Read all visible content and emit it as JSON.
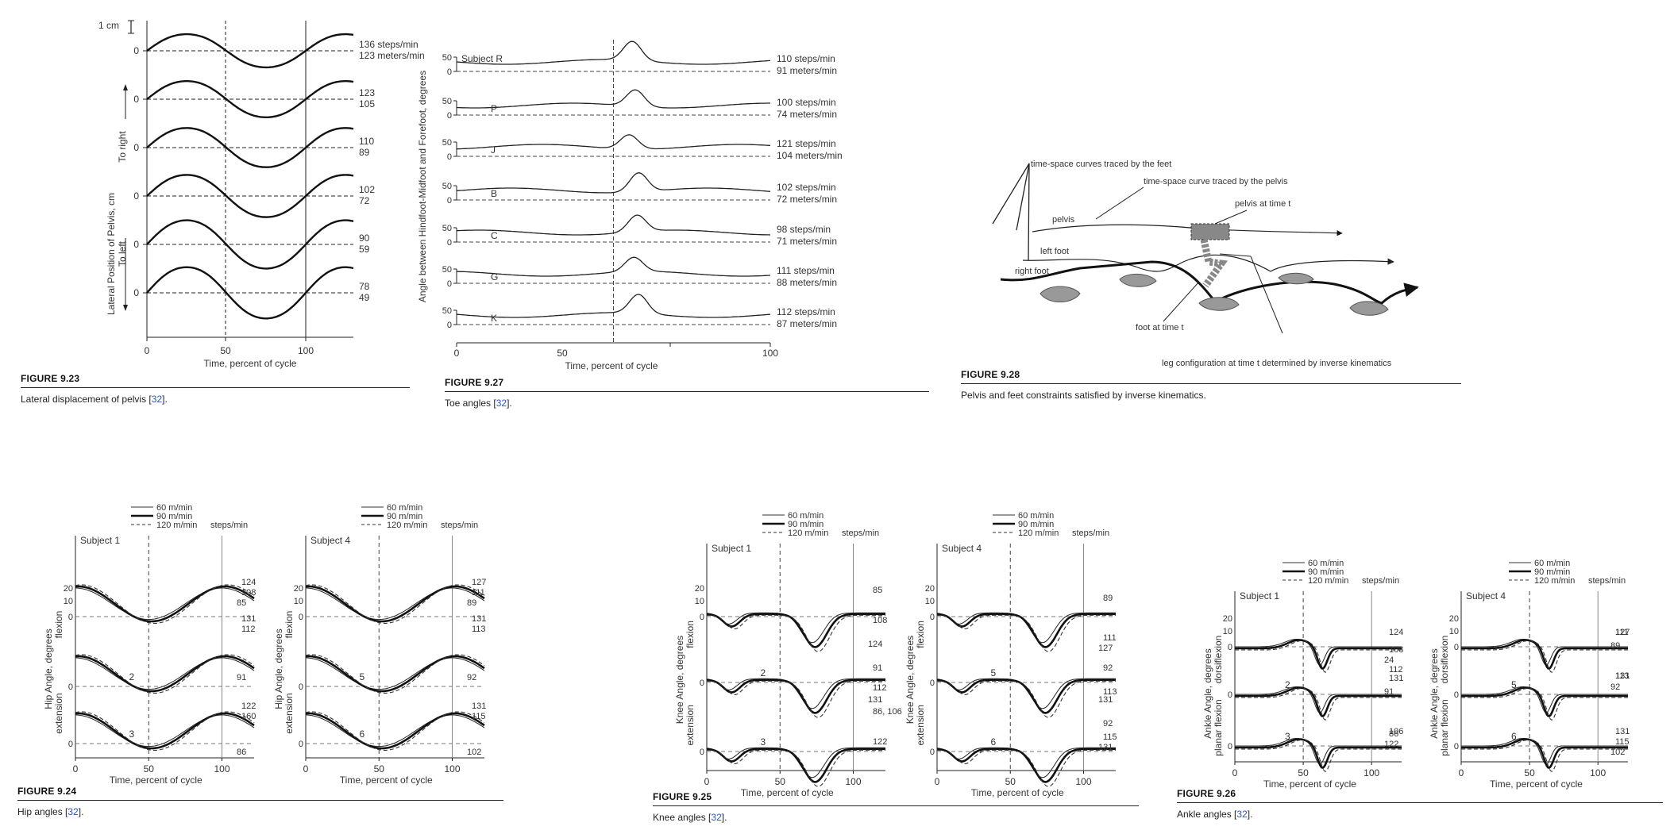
{
  "figures": {
    "f923": {
      "label": "FIGURE 9.23",
      "caption_pre": "Lateral displacement of pelvis [",
      "ref": "32",
      "caption_post": "].",
      "scale_label": "1 cm",
      "ylabel_main": "Lateral Position of Pelvis, cm",
      "ylabel_right": "To right",
      "ylabel_left": "To left",
      "xlabel": "Time, percent of cycle",
      "xticks": [
        "0",
        "50",
        "100"
      ],
      "zero": "0",
      "rows": [
        {
          "steps": "136 steps/min",
          "speed": "123 meters/min"
        },
        {
          "steps": "123",
          "speed": "105"
        },
        {
          "steps": "110",
          "speed": "89"
        },
        {
          "steps": "102",
          "speed": "72"
        },
        {
          "steps": "90",
          "speed": "59"
        },
        {
          "steps": "78",
          "speed": "49"
        }
      ]
    },
    "f927": {
      "label": "FIGURE 9.27",
      "caption_pre": "Toe angles [",
      "ref": "32",
      "caption_post": "].",
      "ylabel": "Angle between Hindfoot-Midfoot and Forefoot, degrees",
      "xlabel": "Time, percent of cycle",
      "xticks": [
        "0",
        "50",
        "100"
      ],
      "tick50": "50",
      "tick0": "0",
      "rows": [
        {
          "subject": "Subject R",
          "steps": "110 steps/min",
          "speed": "91 meters/min"
        },
        {
          "subject": "P",
          "steps": "100 steps/min",
          "speed": "74 meters/min"
        },
        {
          "subject": "J",
          "steps": "121 steps/min",
          "speed": "104 meters/min"
        },
        {
          "subject": "B",
          "steps": "102 steps/min",
          "speed": "72 meters/min"
        },
        {
          "subject": "C",
          "steps": "98 steps/min",
          "speed": "71 meters/min"
        },
        {
          "subject": "G",
          "steps": "111 steps/min",
          "speed": "88 meters/min"
        },
        {
          "subject": "K",
          "steps": "112 steps/min",
          "speed": "87 meters/min"
        }
      ]
    },
    "f928": {
      "label": "FIGURE 9.28",
      "caption": "Pelvis and feet constraints satisfied by inverse kinematics.",
      "lbl_feet_curves": "time-space curves traced by the feet",
      "lbl_pelvis_curve": "time-space curve traced by the pelvis",
      "lbl_pelvis_time": "pelvis at time t",
      "lbl_pelvis": "pelvis",
      "lbl_left_foot": "left foot",
      "lbl_right_foot": "right foot",
      "lbl_foot_time": "foot at time t",
      "lbl_leg": "leg configuration at time t determined by inverse kinematics"
    },
    "f924": {
      "label": "FIGURE 9.24",
      "caption_pre": "Hip angles [",
      "ref": "32",
      "caption_post": "].",
      "ylabel": "Hip Angle, degrees",
      "yl_up": "flexion",
      "yl_down": "extension",
      "panels": [
        {
          "subject": "Subject 1",
          "num2": "2",
          "num3": "3",
          "labels": [
            "124",
            "108",
            "85",
            "131",
            "112",
            "91",
            "122",
            "160",
            "86"
          ]
        },
        {
          "subject": "Subject 4",
          "num2": "5",
          "num3": "6",
          "labels": [
            "127",
            "111",
            "89",
            "131",
            "113",
            "92",
            "131",
            "115",
            "102"
          ]
        }
      ]
    },
    "f925": {
      "label": "FIGURE 9.25",
      "caption_pre": "Knee angles [",
      "ref": "32",
      "caption_post": "].",
      "ylabel": "Knee Angle, degrees",
      "yl_up": "flexion",
      "yl_down": "extension",
      "panels": [
        {
          "subject": "Subject 1",
          "num2": "2",
          "num3": "3",
          "labels": [
            "85",
            "108",
            "124",
            "91",
            "112",
            "131",
            "86, 106",
            "122"
          ]
        },
        {
          "subject": "Subject 4",
          "num2": "5",
          "num3": "6",
          "labels": [
            "89",
            "111",
            "127",
            "92",
            "113",
            "131",
            "92",
            "115",
            "131"
          ]
        }
      ]
    },
    "f926": {
      "label": "FIGURE 9.26",
      "caption_pre": "Ankle angles [",
      "ref": "32",
      "caption_post": "].",
      "ylabel": "Ankle Angle, degrees",
      "yl_up": "dorsiflexion",
      "yl_down": "planar flexion",
      "panels": [
        {
          "subject": "Subject 1",
          "num2": "2",
          "num3": "3",
          "labels": [
            "124",
            "108",
            "24",
            "112",
            "131",
            "91",
            "106",
            "86",
            "122"
          ]
        },
        {
          "subject": "Subject 4",
          "num2": "5",
          "num3": "6",
          "labels": [
            "111",
            "127",
            "89",
            "113",
            "131",
            "92",
            "131",
            "115",
            "102"
          ]
        }
      ]
    }
  },
  "common": {
    "legend_60": "60 m/min",
    "legend_90": "90 m/min",
    "legend_120": "120 m/min",
    "legend_steps": "steps/min",
    "xlabel": "Time, percent of cycle",
    "xticks": [
      "0",
      "50",
      "100"
    ],
    "tick20": "20",
    "tick10": "10",
    "tick0": "0"
  }
}
